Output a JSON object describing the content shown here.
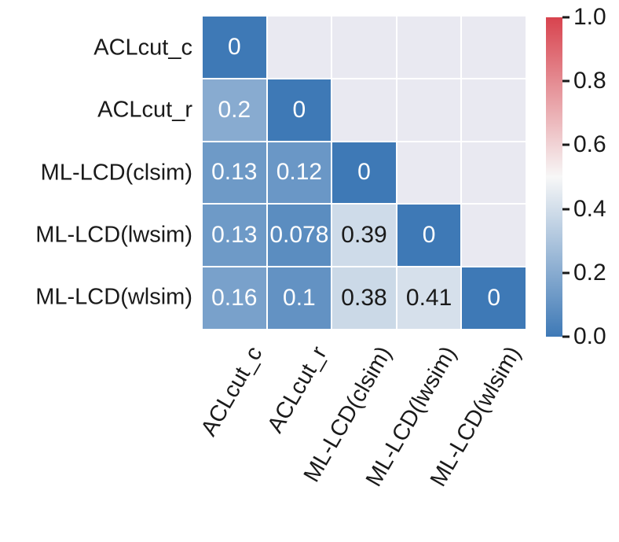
{
  "figure": {
    "background": "#ffffff",
    "panel_background": "#e9e9f1",
    "grid_line_color": "#ffffff",
    "label_color": "#1a1a1a"
  },
  "chart_data": {
    "type": "heatmap",
    "title": "",
    "xlabel": "",
    "ylabel": "",
    "categories": [
      "ACLcut_c",
      "ACLcut_r",
      "ML-LCD(clsim)",
      "ML-LCD(lwsim)",
      "ML-LCD(wlsim)"
    ],
    "matrix": [
      [
        0,
        null,
        null,
        null,
        null
      ],
      [
        0.2,
        0,
        null,
        null,
        null
      ],
      [
        0.13,
        0.12,
        0,
        null,
        null
      ],
      [
        0.13,
        0.078,
        0.39,
        0,
        null
      ],
      [
        0.16,
        0.1,
        0.38,
        0.41,
        0
      ]
    ],
    "annotations": [
      [
        "0",
        "",
        "",
        "",
        ""
      ],
      [
        "0.2",
        "0",
        "",
        "",
        ""
      ],
      [
        "0.13",
        "0.12",
        "0",
        "",
        ""
      ],
      [
        "0.13",
        "0.078",
        "0.39",
        "0",
        ""
      ],
      [
        "0.16",
        "0.1",
        "0.38",
        "0.41",
        "0"
      ]
    ],
    "mask": "upper-triangle",
    "grid": true,
    "colormap": {
      "name": "blue-white-red",
      "vmin": 0,
      "vmax": 1,
      "midpoint": 0.5,
      "low": "#3e79b6",
      "mid": "#f7f7f7",
      "high": "#d8434e"
    },
    "annot_text_light": "#ffffff",
    "annot_text_dark": "#1a1a1a",
    "dark_text_threshold": 0.3,
    "colorbar": {
      "position": "right",
      "ticks": [
        {
          "value": 1.0,
          "label": "1.0"
        },
        {
          "value": 0.8,
          "label": "0.8"
        },
        {
          "value": 0.6,
          "label": "0.6"
        },
        {
          "value": 0.4,
          "label": "0.4"
        },
        {
          "value": 0.2,
          "label": "0.2"
        },
        {
          "value": 0.0,
          "label": "0.0"
        }
      ]
    }
  }
}
